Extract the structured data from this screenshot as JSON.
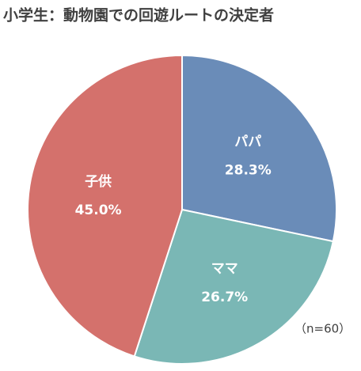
{
  "chart_data": {
    "type": "pie",
    "title": "小学生：動物園での回遊ルートの決定者",
    "categories": [
      "パパ",
      "ママ",
      "子供"
    ],
    "values": [
      28.3,
      26.7,
      45.0
    ],
    "value_labels": [
      "28.3%",
      "26.7%",
      "45.0%"
    ],
    "colors": [
      "#6a8cb8",
      "#7ab7b5",
      "#d4716c"
    ],
    "annotation": "（n=60）"
  }
}
